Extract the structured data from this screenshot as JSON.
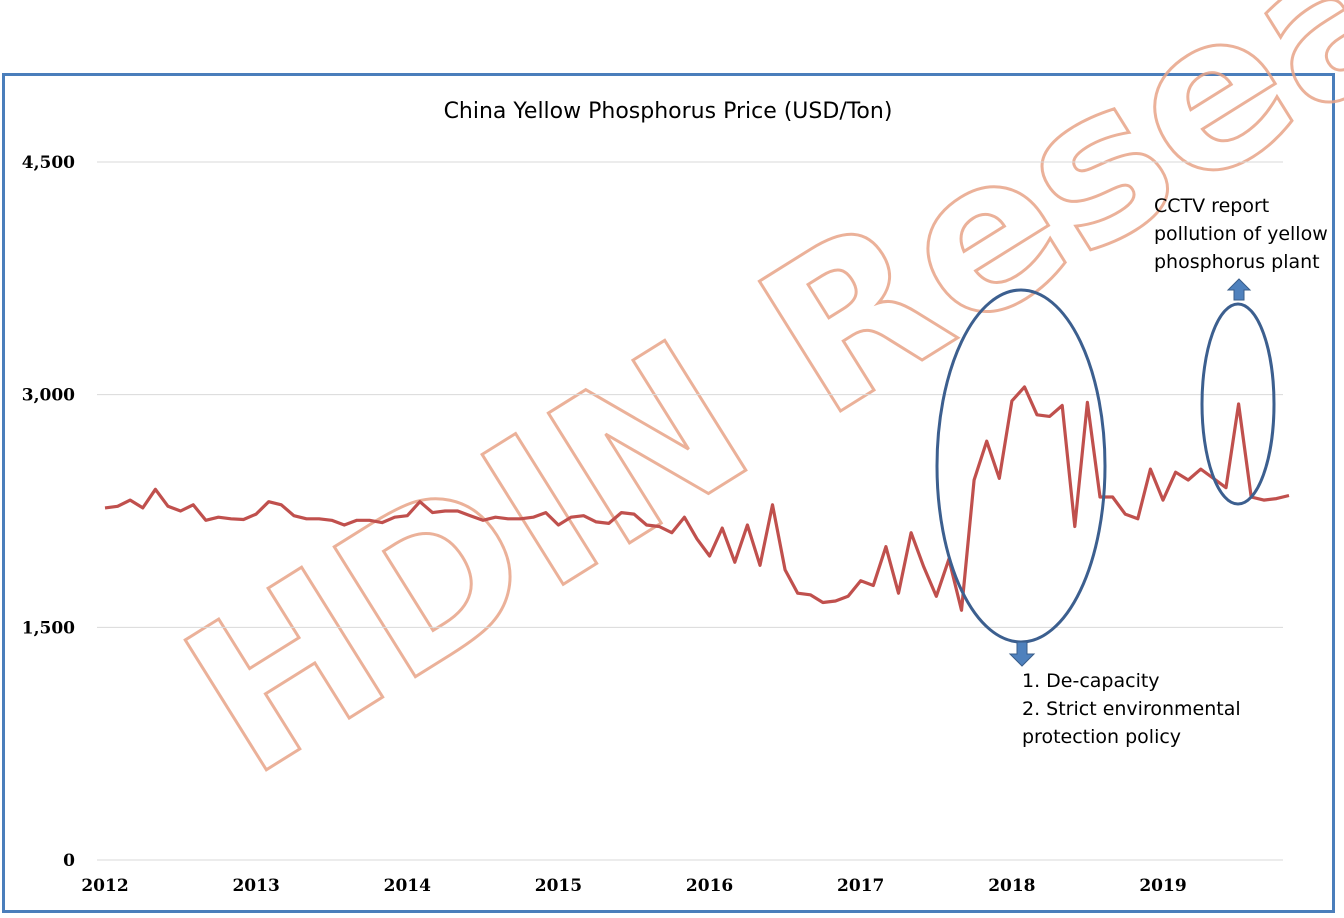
{
  "watermark": "HDIN Research",
  "colors": {
    "series": "#c0504d",
    "grid": "#d9d9d9",
    "ellipse": "#3c5f8f",
    "arrow": "#4f81bd",
    "frame": "#4a7ebb"
  },
  "chart_data": {
    "type": "line",
    "title": "China Yellow Phosphorus Price (USD/Ton)",
    "xlabel": "",
    "ylabel": "",
    "ylim": [
      0,
      4500
    ],
    "yticks": [
      0,
      1500,
      3000,
      4500
    ],
    "ytick_labels": [
      "0",
      "1,500",
      "3,000",
      "4,500"
    ],
    "xticks": [
      "2012",
      "2013",
      "2014",
      "2015",
      "2016",
      "2017",
      "2018",
      "2019"
    ],
    "grid": true,
    "legend": "none",
    "series": [
      {
        "start": "2012-01",
        "step": "month",
        "values": [
          2270,
          2280,
          2320,
          2270,
          2390,
          2280,
          2250,
          2290,
          2190,
          2210,
          2200,
          2195,
          2230,
          2310,
          2290,
          2220,
          2200,
          2200,
          2190,
          2160,
          2190,
          2190,
          2175,
          2210,
          2220,
          2310,
          2240,
          2250,
          2250,
          2220,
          2190,
          2210,
          2200,
          2200,
          2210,
          2240,
          2160,
          2210,
          2220,
          2180,
          2170,
          2240,
          2230,
          2160,
          2150,
          2110,
          2210,
          2070,
          1960,
          2140,
          1920,
          2160,
          1900,
          2290,
          1870,
          1720,
          1710,
          1660,
          1670,
          1700,
          1800,
          1770,
          2020,
          1720,
          2110,
          1890,
          1700,
          1940,
          1610,
          2450,
          2700,
          2460,
          2960,
          3050,
          2870,
          2860,
          2930,
          2150,
          2950,
          2340,
          2340,
          2230,
          2200,
          2520,
          2320,
          2500,
          2450,
          2520,
          2460,
          2400,
          2940,
          2340,
          2320,
          2330,
          2350
        ]
      }
    ],
    "annotations": [
      {
        "lines": [
          "1. De-capacity",
          "2. Strict environmental",
          "protection policy"
        ],
        "target": "2018",
        "direction": "down"
      },
      {
        "lines": [
          "CCTV report",
          "pollution of yellow",
          "phosphorus plant"
        ],
        "target": "2019-07",
        "direction": "up"
      }
    ]
  }
}
